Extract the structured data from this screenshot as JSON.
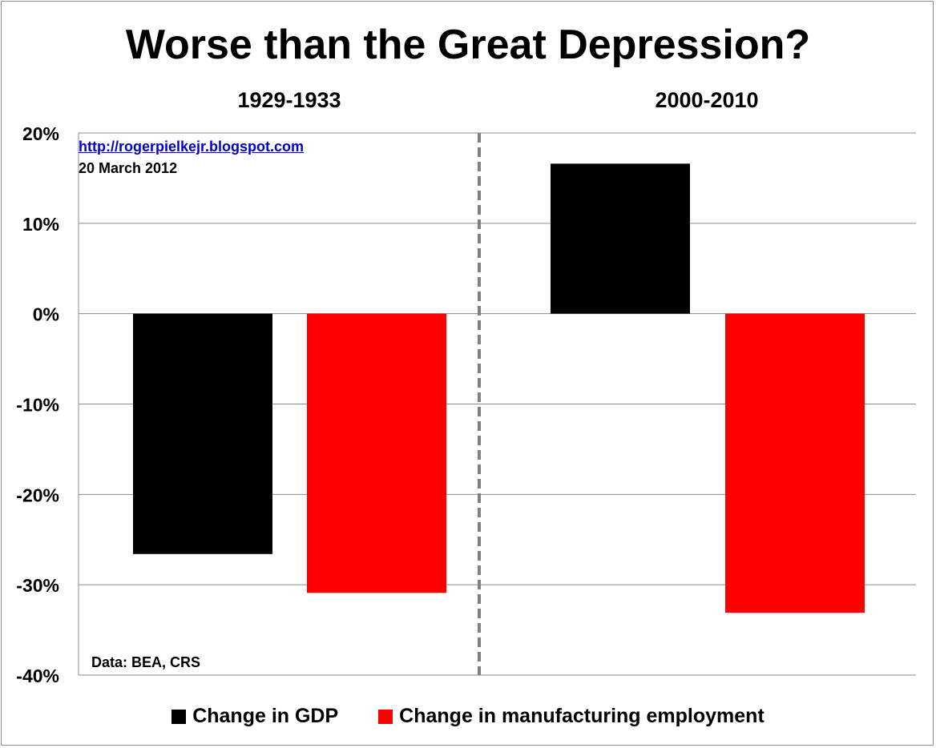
{
  "chart_data": {
    "type": "bar",
    "title": "Worse than the Great Depression?",
    "groups": [
      "1929-1933",
      "2000-2010"
    ],
    "series": [
      {
        "name": "Change in GDP",
        "color": "#000000",
        "values": [
          -26.6,
          16.6
        ]
      },
      {
        "name": "Change in manufacturing employment",
        "color": "#ff0000",
        "values": [
          -30.9,
          -33.1
        ]
      }
    ],
    "ylim": [
      -40,
      20
    ],
    "yticks": [
      20,
      10,
      0,
      -10,
      -20,
      -30,
      -40
    ],
    "ytick_labels": [
      "20%",
      "10%",
      "0%",
      "-10%",
      "-20%",
      "-30%",
      "-40%"
    ],
    "grid": true,
    "legend_position": "bottom"
  },
  "annotations": {
    "source_url": "http://rogerpielkejr.blogspot.com",
    "date": "20 March 2012",
    "data_source": "Data: BEA, CRS"
  }
}
